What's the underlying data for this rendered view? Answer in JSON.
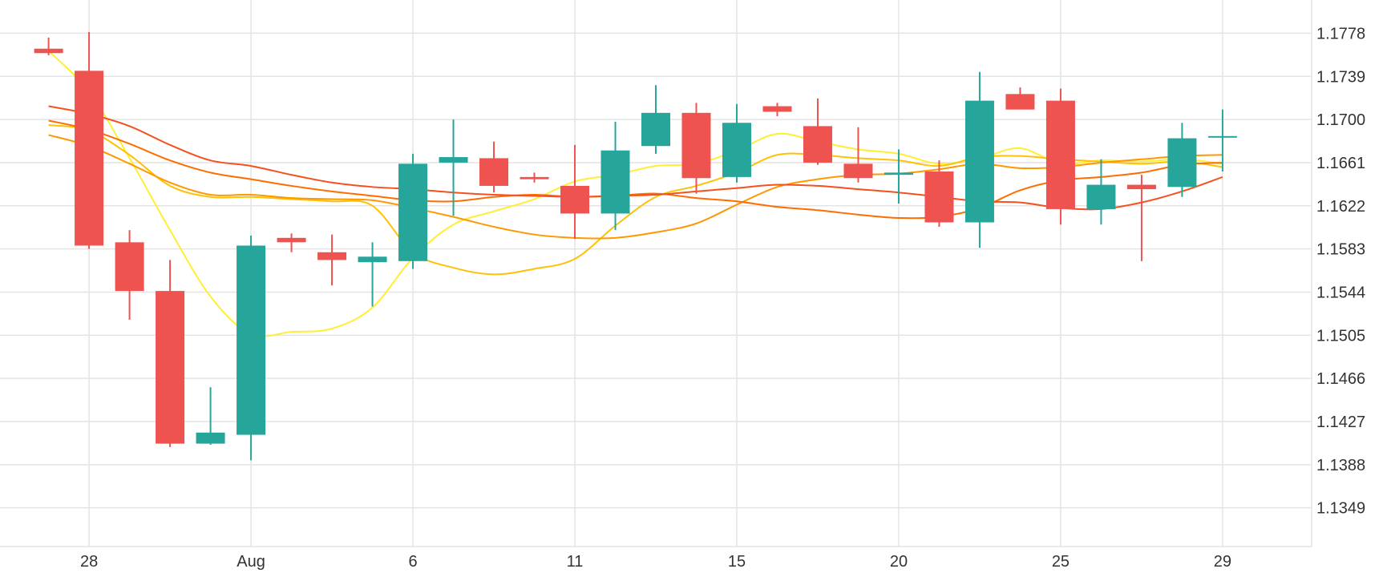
{
  "chart_data": {
    "type": "candlestick",
    "x_ticks": [
      {
        "label": "28",
        "index": 1
      },
      {
        "label": "Aug",
        "index": 5
      },
      {
        "label": "6",
        "index": 9
      },
      {
        "label": "11",
        "index": 13
      },
      {
        "label": "15",
        "index": 17
      },
      {
        "label": "20",
        "index": 21
      },
      {
        "label": "25",
        "index": 25
      },
      {
        "label": "29",
        "index": 29
      }
    ],
    "y_ticks": [
      "1.1778",
      "1.1739",
      "1.1700",
      "1.1661",
      "1.1622",
      "1.1583",
      "1.1544",
      "1.1505",
      "1.1466",
      "1.1427",
      "1.1388",
      "1.1349"
    ],
    "ylim": [
      1.1314,
      1.1808
    ],
    "xlim": [
      -1.2,
      31.2
    ],
    "grid": true,
    "colors": {
      "up": "#26a69a",
      "down": "#ef5350",
      "grid": "#e4e4e4",
      "text": "#333333"
    },
    "candles": [
      {
        "o": 1.1764,
        "h": 1.1774,
        "l": 1.1758,
        "c": 1.176
      },
      {
        "o": 1.1744,
        "h": 1.1779,
        "l": 1.1583,
        "c": 1.1586
      },
      {
        "o": 1.1589,
        "h": 1.16,
        "l": 1.1519,
        "c": 1.1545
      },
      {
        "o": 1.1545,
        "h": 1.1573,
        "l": 1.1404,
        "c": 1.1407
      },
      {
        "o": 1.1407,
        "h": 1.1458,
        "l": 1.1406,
        "c": 1.1417
      },
      {
        "o": 1.1415,
        "h": 1.1595,
        "l": 1.1392,
        "c": 1.1586
      },
      {
        "o": 1.1593,
        "h": 1.1597,
        "l": 1.158,
        "c": 1.1589
      },
      {
        "o": 1.158,
        "h": 1.1596,
        "l": 1.155,
        "c": 1.1573
      },
      {
        "o": 1.1571,
        "h": 1.1589,
        "l": 1.1531,
        "c": 1.1576
      },
      {
        "o": 1.1572,
        "h": 1.1669,
        "l": 1.1565,
        "c": 1.166
      },
      {
        "o": 1.1661,
        "h": 1.17,
        "l": 1.1613,
        "c": 1.1666
      },
      {
        "o": 1.1665,
        "h": 1.168,
        "l": 1.1634,
        "c": 1.164
      },
      {
        "o": 1.1648,
        "h": 1.1652,
        "l": 1.1643,
        "c": 1.1646
      },
      {
        "o": 1.164,
        "h": 1.1677,
        "l": 1.1592,
        "c": 1.1615
      },
      {
        "o": 1.1615,
        "h": 1.1698,
        "l": 1.16,
        "c": 1.1672
      },
      {
        "o": 1.1676,
        "h": 1.1731,
        "l": 1.1669,
        "c": 1.1706
      },
      {
        "o": 1.1706,
        "h": 1.1715,
        "l": 1.1633,
        "c": 1.1647
      },
      {
        "o": 1.1648,
        "h": 1.1714,
        "l": 1.1643,
        "c": 1.1697
      },
      {
        "o": 1.1712,
        "h": 1.1715,
        "l": 1.1703,
        "c": 1.1707
      },
      {
        "o": 1.1694,
        "h": 1.1719,
        "l": 1.1659,
        "c": 1.1661
      },
      {
        "o": 1.166,
        "h": 1.1693,
        "l": 1.1643,
        "c": 1.1647
      },
      {
        "o": 1.165,
        "h": 1.1673,
        "l": 1.1624,
        "c": 1.1652
      },
      {
        "o": 1.1653,
        "h": 1.1663,
        "l": 1.1603,
        "c": 1.1607
      },
      {
        "o": 1.1607,
        "h": 1.1743,
        "l": 1.1584,
        "c": 1.1717
      },
      {
        "o": 1.1723,
        "h": 1.1729,
        "l": 1.1711,
        "c": 1.1709
      },
      {
        "o": 1.1717,
        "h": 1.1728,
        "l": 1.1605,
        "c": 1.1619
      },
      {
        "o": 1.1619,
        "h": 1.1664,
        "l": 1.1605,
        "c": 1.1641
      },
      {
        "o": 1.1641,
        "h": 1.165,
        "l": 1.1572,
        "c": 1.1637
      },
      {
        "o": 1.1639,
        "h": 1.1697,
        "l": 1.163,
        "c": 1.1683
      },
      {
        "o": 1.1684,
        "h": 1.1709,
        "l": 1.1653,
        "c": 1.1685
      }
    ],
    "moving_averages": [
      {
        "color": "#ffee33",
        "values": [
          1.1762,
          1.1725,
          1.1665,
          1.16,
          1.154,
          1.1506,
          1.1508,
          1.1511,
          1.153,
          1.1575,
          1.1605,
          1.1617,
          1.1628,
          1.1644,
          1.165,
          1.1658,
          1.166,
          1.1672,
          1.1687,
          1.168,
          1.1673,
          1.1669,
          1.166,
          1.1665,
          1.1674,
          1.166,
          1.1663,
          1.1662,
          1.1664,
          1.166
        ]
      },
      {
        "color": "#ffc107",
        "values": [
          1.1695,
          1.169,
          1.1668,
          1.164,
          1.163,
          1.163,
          1.1628,
          1.1626,
          1.1622,
          1.158,
          1.1566,
          1.156,
          1.1565,
          1.1574,
          1.1604,
          1.163,
          1.164,
          1.1652,
          1.1668,
          1.1668,
          1.1665,
          1.1663,
          1.1658,
          1.1666,
          1.1667,
          1.1664,
          1.1662,
          1.166,
          1.1662,
          1.1657
        ]
      },
      {
        "color": "#ff9800",
        "values": [
          1.1686,
          1.1676,
          1.166,
          1.1643,
          1.1632,
          1.1632,
          1.1629,
          1.1628,
          1.1627,
          1.162,
          1.1612,
          1.1603,
          1.1596,
          1.1593,
          1.1593,
          1.1598,
          1.1606,
          1.1623,
          1.1639,
          1.1646,
          1.165,
          1.1651,
          1.1655,
          1.166,
          1.1656,
          1.1657,
          1.1661,
          1.1664,
          1.1667,
          1.1668
        ]
      },
      {
        "color": "#ff6d00",
        "values": [
          1.1699,
          1.1691,
          1.1678,
          1.1663,
          1.1652,
          1.1646,
          1.164,
          1.1635,
          1.1631,
          1.1627,
          1.1626,
          1.163,
          1.1632,
          1.163,
          1.1631,
          1.1633,
          1.1629,
          1.1626,
          1.1621,
          1.1618,
          1.1614,
          1.1611,
          1.1612,
          1.162,
          1.1636,
          1.1645,
          1.1648,
          1.1652,
          1.1659,
          1.1661
        ]
      },
      {
        "color": "#f4511e",
        "values": [
          1.1712,
          1.1705,
          1.1694,
          1.1677,
          1.1663,
          1.1658,
          1.165,
          1.1643,
          1.1639,
          1.1637,
          1.1634,
          1.1632,
          1.1631,
          1.163,
          1.1631,
          1.1632,
          1.1635,
          1.1638,
          1.1641,
          1.164,
          1.1637,
          1.1634,
          1.163,
          1.1626,
          1.1625,
          1.162,
          1.1619,
          1.1625,
          1.1635,
          1.1648
        ]
      }
    ]
  }
}
